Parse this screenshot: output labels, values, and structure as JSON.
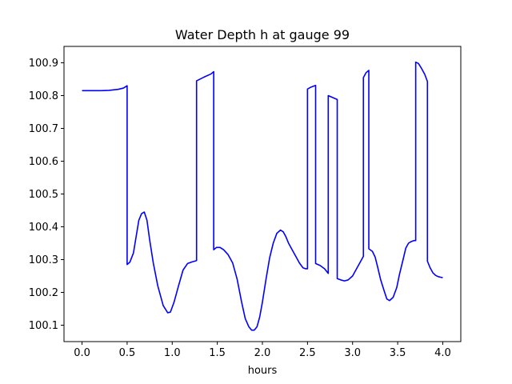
{
  "chart_data": {
    "type": "line",
    "title": "Water Depth h at gauge 99",
    "xlabel": "hours",
    "ylabel": "",
    "xlim": [
      -0.2,
      4.2
    ],
    "ylim": [
      100.05,
      100.95
    ],
    "xticks": [
      0.0,
      0.5,
      1.0,
      1.5,
      2.0,
      2.5,
      3.0,
      3.5,
      4.0
    ],
    "xtick_labels": [
      "0.0",
      "0.5",
      "1.0",
      "1.5",
      "2.0",
      "2.5",
      "3.0",
      "3.5",
      "4.0"
    ],
    "yticks": [
      100.1,
      100.2,
      100.3,
      100.4,
      100.5,
      100.6,
      100.7,
      100.8,
      100.9
    ],
    "ytick_labels": [
      "100.1",
      "100.2",
      "100.3",
      "100.4",
      "100.5",
      "100.6",
      "100.7",
      "100.8",
      "100.9"
    ],
    "grid": false,
    "series": [
      {
        "color": "#0000ff",
        "x": [
          0.0,
          0.1,
          0.2,
          0.3,
          0.4,
          0.46,
          0.5,
          0.5,
          0.53,
          0.57,
          0.6,
          0.63,
          0.66,
          0.69,
          0.72,
          0.75,
          0.79,
          0.84,
          0.9,
          0.95,
          0.98,
          1.02,
          1.07,
          1.12,
          1.17,
          1.22,
          1.27,
          1.27,
          1.35,
          1.43,
          1.46,
          1.46,
          1.49,
          1.53,
          1.57,
          1.62,
          1.67,
          1.72,
          1.77,
          1.81,
          1.85,
          1.88,
          1.91,
          1.94,
          1.97,
          2.0,
          2.04,
          2.08,
          2.12,
          2.16,
          2.2,
          2.23,
          2.26,
          2.29,
          2.33,
          2.37,
          2.41,
          2.45,
          2.48,
          2.5,
          2.5,
          2.54,
          2.59,
          2.59,
          2.64,
          2.69,
          2.73,
          2.73,
          2.83,
          2.83,
          2.87,
          2.91,
          2.95,
          3.0,
          3.04,
          3.08,
          3.12,
          3.12,
          3.15,
          3.18,
          3.18,
          3.22,
          3.25,
          3.28,
          3.31,
          3.35,
          3.38,
          3.41,
          3.45,
          3.49,
          3.52,
          3.56,
          3.59,
          3.62,
          3.65,
          3.68,
          3.7,
          3.7,
          3.73,
          3.76,
          3.8,
          3.83,
          3.83,
          3.86,
          3.89,
          3.92,
          3.95,
          3.98,
          4.0
        ],
        "y": [
          100.815,
          100.815,
          100.815,
          100.816,
          100.819,
          100.823,
          100.83,
          100.285,
          100.292,
          100.32,
          100.37,
          100.42,
          100.44,
          100.445,
          100.42,
          100.36,
          100.29,
          100.22,
          100.16,
          100.138,
          100.14,
          100.17,
          100.22,
          100.268,
          100.288,
          100.293,
          100.297,
          100.845,
          100.856,
          100.866,
          100.873,
          100.33,
          100.337,
          100.337,
          100.33,
          100.315,
          100.29,
          100.24,
          100.17,
          100.12,
          100.095,
          100.085,
          100.085,
          100.095,
          100.125,
          100.17,
          100.24,
          100.305,
          100.35,
          100.38,
          100.39,
          100.385,
          100.37,
          100.35,
          100.33,
          100.31,
          100.29,
          100.275,
          100.272,
          100.272,
          100.82,
          100.826,
          100.831,
          100.288,
          100.282,
          100.272,
          100.258,
          100.8,
          100.788,
          100.242,
          100.238,
          100.235,
          100.238,
          100.25,
          100.27,
          100.29,
          100.31,
          100.855,
          100.87,
          100.877,
          100.333,
          100.325,
          100.308,
          100.275,
          100.24,
          100.205,
          100.18,
          100.175,
          100.185,
          100.215,
          100.255,
          100.3,
          100.335,
          100.35,
          100.355,
          100.358,
          100.358,
          100.902,
          100.898,
          100.885,
          100.865,
          100.843,
          100.295,
          100.275,
          100.26,
          100.252,
          100.248,
          100.246,
          100.245
        ]
      }
    ]
  }
}
